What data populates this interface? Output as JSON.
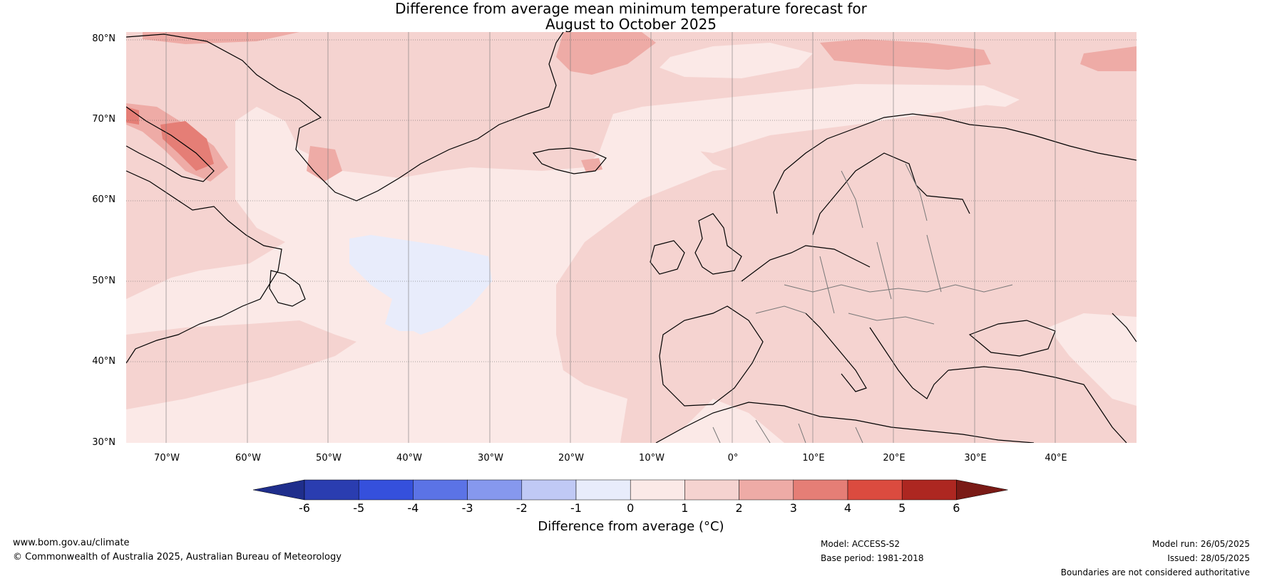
{
  "title": {
    "line1": "Difference from average mean minimum temperature forecast for",
    "line2": "August to October 2025"
  },
  "map": {
    "lat_labels": [
      "80°N",
      "70°N",
      "60°N",
      "50°N",
      "40°N",
      "30°N"
    ],
    "lon_labels": [
      "70°W",
      "60°W",
      "50°W",
      "40°W",
      "30°W",
      "20°W",
      "10°W",
      "0°",
      "10°E",
      "20°E",
      "30°E",
      "40°E"
    ],
    "extent_text": "30°N–80°N, 75°W–50°E"
  },
  "colorbar": {
    "ticks": [
      "-6",
      "-5",
      "-4",
      "-3",
      "-2",
      "-1",
      "0",
      "1",
      "2",
      "3",
      "4",
      "5",
      "6"
    ],
    "label": "Difference from average (°C)",
    "colors": [
      "#1f2e8c",
      "#2a3db0",
      "#3550dc",
      "#5b73e6",
      "#8698ee",
      "#c0c9f5",
      "#e8ecfb",
      "#fbe9e7",
      "#f5d3d0",
      "#eeaba6",
      "#e57e76",
      "#db4b3f",
      "#ad2721",
      "#7a1a16"
    ]
  },
  "footer": {
    "website": "www.bom.gov.au/climate",
    "copyright": "© Commonwealth of Australia 2025, Australian Bureau of Meteorology",
    "model": "Model: ACCESS-S2",
    "base_period": "Base period: 1981-2018",
    "model_run": "Model run: 26/05/2025",
    "issued": "Issued: 28/05/2025",
    "disclaimer": "Boundaries are not considered authoritative"
  }
}
